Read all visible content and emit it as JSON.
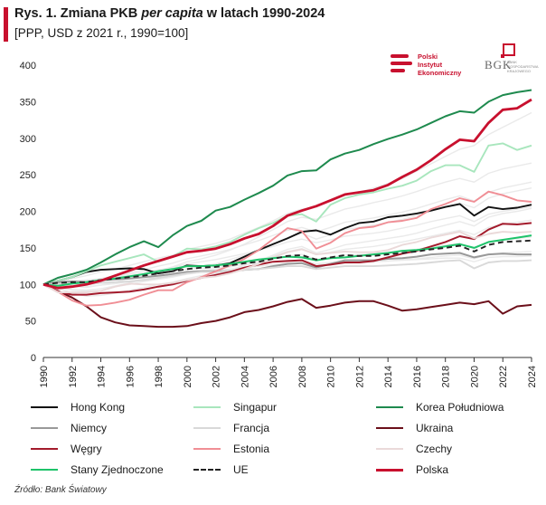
{
  "header": {
    "title_prefix": "Rys. 1. Zmiana PKB ",
    "title_italic": "per capita",
    "title_suffix": " w latach 1990-2024",
    "subtitle": "[PPP, USD z 2021 r., 1990=100]"
  },
  "logos": {
    "pie_lines": [
      "Polski",
      "Instytut",
      "Ekonomiczny"
    ],
    "bgk_name": "BGK",
    "bgk_sub": "BANK GOSPODARSTWA KRAJOWEGO"
  },
  "source": "Źródło: Bank Światowy",
  "colors": {
    "accent": "#c8102e",
    "axis": "#333333"
  },
  "chart_data": {
    "type": "line",
    "title": "Zmiana PKB per capita w latach 1990-2024",
    "ylabel": "PPP, USD z 2021 r., 1990=100",
    "xlabel": "",
    "ylim": [
      0,
      400
    ],
    "yticks": [
      0,
      50,
      100,
      150,
      200,
      250,
      300,
      350,
      400
    ],
    "xticks": [
      "1990",
      "1992",
      "1994",
      "1996",
      "1998",
      "2000",
      "2002",
      "2004",
      "2006",
      "2008",
      "2010",
      "2012",
      "2014",
      "2016",
      "2018",
      "2020",
      "2022",
      "2024"
    ],
    "x": [
      1990,
      1991,
      1992,
      1993,
      1994,
      1995,
      1996,
      1997,
      1998,
      1999,
      2000,
      2001,
      2002,
      2003,
      2004,
      2005,
      2006,
      2007,
      2008,
      2009,
      2010,
      2011,
      2012,
      2013,
      2014,
      2015,
      2016,
      2017,
      2018,
      2019,
      2020,
      2021,
      2022,
      2023,
      2024
    ],
    "background_series": [
      [
        100,
        104,
        108,
        112,
        117,
        121,
        126,
        131,
        136,
        140,
        148,
        152,
        156,
        162,
        170,
        178,
        187,
        197,
        203,
        206,
        215,
        222,
        226,
        232,
        238,
        245,
        255,
        265,
        275,
        285,
        290,
        305,
        315,
        325,
        335
      ],
      [
        100,
        98,
        97,
        96,
        99,
        103,
        108,
        114,
        119,
        124,
        131,
        135,
        140,
        147,
        155,
        165,
        175,
        186,
        192,
        189,
        196,
        203,
        207,
        212,
        216,
        221,
        227,
        234,
        240,
        245,
        240,
        252,
        258,
        262,
        266
      ],
      [
        100,
        96,
        92,
        91,
        94,
        98,
        102,
        107,
        111,
        115,
        121,
        125,
        128,
        134,
        140,
        147,
        155,
        164,
        170,
        162,
        168,
        175,
        178,
        181,
        185,
        189,
        194,
        200,
        206,
        211,
        205,
        218,
        224,
        228,
        232
      ],
      [
        100,
        102,
        104,
        106,
        108,
        111,
        114,
        117,
        120,
        123,
        128,
        131,
        134,
        138,
        142,
        147,
        152,
        158,
        162,
        157,
        161,
        166,
        168,
        170,
        173,
        177,
        181,
        186,
        190,
        194,
        186,
        196,
        200,
        203,
        206
      ],
      [
        100,
        99,
        98,
        97,
        99,
        101,
        104,
        107,
        110,
        113,
        117,
        119,
        121,
        124,
        128,
        131,
        135,
        139,
        141,
        134,
        137,
        140,
        141,
        142,
        144,
        146,
        148,
        151,
        154,
        156,
        149,
        158,
        161,
        163,
        165
      ],
      [
        100,
        101,
        102,
        103,
        104,
        106,
        108,
        110,
        112,
        114,
        117,
        118,
        119,
        121,
        123,
        125,
        127,
        129,
        130,
        126,
        128,
        129,
        130,
        131,
        132,
        134,
        135,
        137,
        139,
        140,
        135,
        141,
        143,
        144,
        145
      ],
      [
        100,
        95,
        88,
        84,
        85,
        88,
        92,
        96,
        100,
        103,
        108,
        112,
        115,
        120,
        126,
        132,
        140,
        148,
        152,
        143,
        148,
        154,
        157,
        160,
        163,
        166,
        170,
        176,
        181,
        186,
        180,
        192,
        197,
        200,
        204
      ],
      [
        100,
        97,
        93,
        92,
        94,
        97,
        100,
        104,
        107,
        110,
        114,
        117,
        120,
        124,
        129,
        134,
        139,
        145,
        149,
        141,
        144,
        148,
        150,
        152,
        155,
        158,
        162,
        166,
        170,
        174,
        168,
        178,
        182,
        185,
        188
      ],
      [
        100,
        103,
        105,
        106,
        108,
        110,
        112,
        114,
        116,
        118,
        121,
        122,
        123,
        125,
        127,
        129,
        131,
        133,
        133,
        128,
        130,
        131,
        131,
        131,
        132,
        133,
        134,
        135,
        136,
        136,
        131,
        137,
        138,
        138,
        139
      ],
      [
        100,
        101,
        103,
        105,
        108,
        112,
        116,
        120,
        125,
        129,
        135,
        139,
        143,
        148,
        154,
        160,
        167,
        174,
        178,
        172,
        178,
        185,
        188,
        191,
        195,
        199,
        204,
        210,
        216,
        221,
        214,
        226,
        232,
        236,
        240
      ]
    ],
    "series": [
      {
        "name": "Hong Kong",
        "color": "#111111",
        "width": 1.9,
        "dash": "",
        "values": [
          100,
          105,
          110,
          117,
          120,
          121,
          122,
          121,
          115,
          118,
          126,
          125,
          126,
          129,
          138,
          147,
          155,
          163,
          172,
          174,
          168,
          177,
          184,
          186,
          192,
          194,
          197,
          201,
          206,
          210,
          194,
          206,
          203,
          205,
          209
        ]
      },
      {
        "name": "Singapur",
        "color": "#a8e6bd",
        "width": 1.9,
        "dash": "",
        "values": [
          100,
          105,
          110,
          118,
          126,
          131,
          136,
          141,
          131,
          138,
          149,
          148,
          152,
          158,
          168,
          177,
          184,
          194,
          196,
          186,
          209,
          218,
          223,
          226,
          231,
          235,
          242,
          255,
          263,
          263,
          254,
          290,
          293,
          284,
          290
        ]
      },
      {
        "name": "Korea Południowa",
        "color": "#1e8a4e",
        "width": 2.0,
        "dash": "",
        "values": [
          100,
          109,
          114,
          120,
          130,
          141,
          151,
          159,
          151,
          167,
          180,
          187,
          201,
          206,
          216,
          225,
          235,
          249,
          255,
          256,
          271,
          279,
          284,
          292,
          299,
          305,
          312,
          321,
          330,
          337,
          335,
          350,
          359,
          363,
          366
        ]
      },
      {
        "name": "Niemcy",
        "color": "#999999",
        "width": 2.0,
        "dash": "",
        "values": [
          100,
          103,
          104,
          103,
          106,
          107,
          108,
          110,
          112,
          114,
          117,
          118,
          118,
          118,
          120,
          121,
          125,
          128,
          129,
          123,
          128,
          133,
          133,
          133,
          135,
          136,
          138,
          141,
          142,
          143,
          137,
          141,
          142,
          141,
          141
        ]
      },
      {
        "name": "Francja",
        "color": "#d9d9d9",
        "width": 1.9,
        "dash": "",
        "values": [
          100,
          100,
          101,
          100,
          102,
          103,
          104,
          106,
          109,
          112,
          115,
          117,
          117,
          118,
          120,
          121,
          123,
          125,
          125,
          121,
          123,
          125,
          125,
          125,
          126,
          127,
          128,
          130,
          132,
          133,
          122,
          130,
          132,
          132,
          133
        ]
      },
      {
        "name": "Ukraina",
        "color": "#6b0f1a",
        "width": 2.0,
        "dash": "",
        "values": [
          100,
          91,
          82,
          70,
          55,
          48,
          44,
          43,
          42,
          42,
          43,
          47,
          50,
          55,
          62,
          65,
          70,
          76,
          80,
          68,
          71,
          75,
          77,
          77,
          71,
          64,
          66,
          69,
          72,
          75,
          73,
          77,
          60,
          70,
          72
        ]
      },
      {
        "name": "Węgry",
        "color": "#a31b2c",
        "width": 2.0,
        "dash": "",
        "values": [
          100,
          90,
          86,
          86,
          88,
          89,
          90,
          93,
          97,
          100,
          105,
          109,
          113,
          117,
          123,
          127,
          131,
          132,
          133,
          125,
          127,
          130,
          130,
          132,
          137,
          142,
          146,
          152,
          158,
          166,
          162,
          175,
          183,
          182,
          184
        ]
      },
      {
        "name": "Estonia",
        "color": "#f08e95",
        "width": 1.9,
        "dash": "",
        "values": [
          100,
          90,
          78,
          71,
          72,
          75,
          79,
          86,
          92,
          92,
          103,
          110,
          118,
          126,
          135,
          147,
          162,
          177,
          173,
          149,
          157,
          170,
          177,
          179,
          185,
          187,
          191,
          203,
          210,
          218,
          213,
          227,
          222,
          215,
          213
        ]
      },
      {
        "name": "Czechy",
        "color": "#ead9d9",
        "width": 1.9,
        "dash": "",
        "values": [
          100,
          89,
          89,
          89,
          91,
          97,
          101,
          100,
          100,
          102,
          106,
          109,
          111,
          115,
          121,
          128,
          137,
          144,
          148,
          141,
          143,
          145,
          144,
          144,
          147,
          154,
          158,
          164,
          168,
          172,
          163,
          169,
          172,
          171,
          172
        ]
      },
      {
        "name": "Stany Zjednoczone",
        "color": "#1ec36a",
        "width": 2.0,
        "dash": "",
        "values": [
          100,
          98,
          101,
          103,
          106,
          108,
          111,
          114,
          118,
          121,
          125,
          125,
          126,
          128,
          131,
          134,
          136,
          138,
          137,
          133,
          136,
          137,
          139,
          141,
          143,
          146,
          147,
          149,
          152,
          155,
          150,
          158,
          161,
          164,
          167
        ]
      },
      {
        "name": "UE",
        "color": "#222222",
        "width": 1.9,
        "dash": "6,4",
        "values": [
          100,
          102,
          103,
          103,
          106,
          108,
          110,
          112,
          115,
          118,
          121,
          123,
          124,
          126,
          129,
          131,
          135,
          139,
          140,
          134,
          137,
          140,
          139,
          139,
          141,
          143,
          145,
          148,
          150,
          153,
          145,
          154,
          158,
          159,
          160
        ]
      },
      {
        "name": "Polska",
        "color": "#c8102e",
        "width": 2.8,
        "dash": "",
        "values": [
          100,
          95,
          97,
          100,
          105,
          112,
          119,
          126,
          132,
          138,
          144,
          146,
          149,
          155,
          163,
          169,
          180,
          194,
          201,
          207,
          215,
          223,
          226,
          229,
          236,
          247,
          257,
          270,
          285,
          298,
          296,
          321,
          339,
          341,
          353
        ]
      }
    ]
  }
}
